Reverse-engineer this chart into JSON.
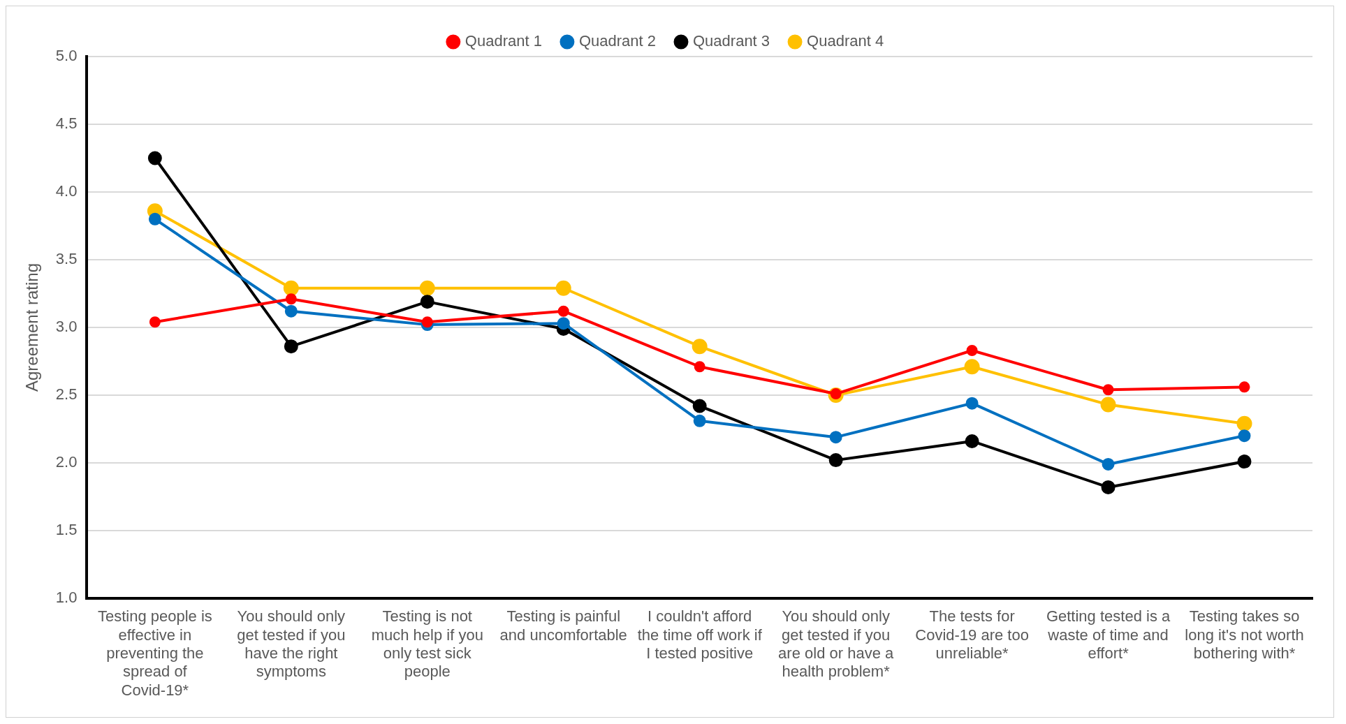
{
  "chart_data": {
    "type": "line",
    "ylabel": "Agreement rating",
    "categories": [
      "Testing people is effective in preventing the spread of Covid-19*",
      "You should only get tested if you have the right symptoms",
      "Testing is not much help if you only test sick people",
      "Testing is painful and uncomfortable",
      "I couldn't afford the time off work if I tested positive",
      "You should only get tested if you are old or have a health problem*",
      "The tests for Covid-19 are too unreliable*",
      "Getting tested is a waste of time and effort*",
      "Testing takes so long it's not worth bothering with*"
    ],
    "series": [
      {
        "name": "Quadrant 1",
        "color": "#ff0000",
        "values": [
          3.04,
          3.21,
          3.04,
          3.12,
          2.71,
          2.51,
          2.83,
          2.54,
          2.56
        ]
      },
      {
        "name": "Quadrant 2",
        "color": "#0070c0",
        "values": [
          3.8,
          3.12,
          3.02,
          3.03,
          2.31,
          2.19,
          2.44,
          1.99,
          2.2
        ]
      },
      {
        "name": "Quadrant 3",
        "color": "#000000",
        "values": [
          4.25,
          2.86,
          3.19,
          2.99,
          2.42,
          2.02,
          2.16,
          1.82,
          2.01
        ]
      },
      {
        "name": "Quadrant 4",
        "color": "#ffc000",
        "values": [
          3.86,
          3.29,
          3.29,
          3.29,
          2.86,
          2.5,
          2.71,
          2.43,
          2.29
        ]
      }
    ],
    "ylim": [
      1,
      5
    ],
    "yticks": [
      {
        "value": 1,
        "label": "1.0"
      },
      {
        "value": 1.5,
        "label": "1.5"
      },
      {
        "value": 2,
        "label": "2.0"
      },
      {
        "value": 2.5,
        "label": "2.5"
      },
      {
        "value": 3,
        "label": "3.0"
      },
      {
        "value": 3.5,
        "label": "3.5"
      },
      {
        "value": 4,
        "label": "4.0"
      },
      {
        "value": 4.5,
        "label": "4.5"
      },
      {
        "value": 5,
        "label": "5.0"
      }
    ],
    "grid": "y",
    "legend": "top",
    "marker": "circle",
    "line_style": "solid"
  }
}
